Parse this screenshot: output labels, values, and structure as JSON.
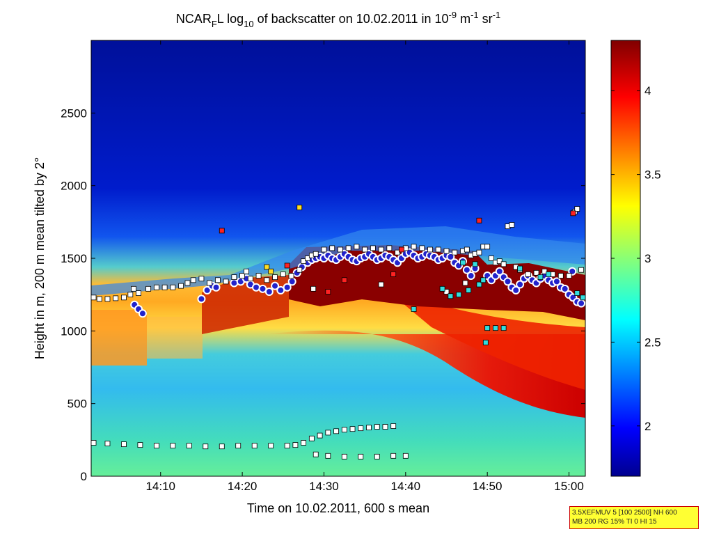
{
  "chart_data": {
    "type": "heatmap",
    "title": {
      "prefix": "NCAR",
      "prefix_sub": "F",
      "mid": "L log",
      "log_sub": "10",
      "main": " of backscatter on 10.02.2011 in 10",
      "exp1": "-9",
      "unit1": " m",
      "exp2": "-1",
      "unit2": " sr",
      "exp3": "-1"
    },
    "xlabel": "Time on 10.02.2011, 600 s mean",
    "ylabel": "Height in m, 200 m mean tilted by 2°",
    "x_range_minutes": [
      0,
      60.5
    ],
    "x_ticks": [
      {
        "label": "14:10",
        "minute": 8.5
      },
      {
        "label": "14:20",
        "minute": 18.5
      },
      {
        "label": "14:30",
        "minute": 28.5
      },
      {
        "label": "14:40",
        "minute": 38.5
      },
      {
        "label": "14:50",
        "minute": 48.5
      },
      {
        "label": "15:00",
        "minute": 58.5
      }
    ],
    "ylim": [
      0,
      3000
    ],
    "y_ticks": [
      0,
      500,
      1000,
      1500,
      2000,
      2500
    ],
    "colorbar": {
      "range": [
        1.7,
        4.3
      ],
      "ticks": [
        "2",
        "2.5",
        "3",
        "3.5",
        "4"
      ],
      "tick_values": [
        2,
        2.5,
        3,
        3.5,
        4
      ],
      "colormap": "jet"
    },
    "series": [
      {
        "marker": "circle",
        "color": "#2222cc",
        "edge": "#ffffff",
        "points": [
          [
            5.3,
            1180
          ],
          [
            5.8,
            1150
          ],
          [
            6.3,
            1120
          ],
          [
            13.5,
            1220
          ],
          [
            14.2,
            1280
          ],
          [
            14.8,
            1310
          ],
          [
            15.3,
            1300
          ],
          [
            17.5,
            1330
          ],
          [
            18.3,
            1340
          ],
          [
            19.0,
            1360
          ],
          [
            19.5,
            1320
          ],
          [
            20.2,
            1300
          ],
          [
            21.0,
            1290
          ],
          [
            21.8,
            1270
          ],
          [
            22.5,
            1310
          ],
          [
            23.2,
            1280
          ],
          [
            24.0,
            1300
          ],
          [
            24.6,
            1340
          ],
          [
            25.2,
            1400
          ],
          [
            25.8,
            1440
          ],
          [
            26.5,
            1470
          ],
          [
            27.0,
            1490
          ],
          [
            27.5,
            1500
          ],
          [
            28.0,
            1510
          ],
          [
            28.5,
            1500
          ],
          [
            29.0,
            1520
          ],
          [
            29.5,
            1500
          ],
          [
            30.0,
            1490
          ],
          [
            30.5,
            1510
          ],
          [
            31.0,
            1530
          ],
          [
            31.5,
            1510
          ],
          [
            32.0,
            1490
          ],
          [
            32.5,
            1480
          ],
          [
            33.0,
            1500
          ],
          [
            33.5,
            1510
          ],
          [
            34.0,
            1530
          ],
          [
            34.5,
            1510
          ],
          [
            35.0,
            1490
          ],
          [
            35.5,
            1500
          ],
          [
            36.0,
            1520
          ],
          [
            36.5,
            1510
          ],
          [
            37.0,
            1490
          ],
          [
            37.5,
            1470
          ],
          [
            38.0,
            1500
          ],
          [
            38.5,
            1530
          ],
          [
            39.0,
            1540
          ],
          [
            39.5,
            1520
          ],
          [
            40.0,
            1500
          ],
          [
            40.5,
            1510
          ],
          [
            41.0,
            1530
          ],
          [
            41.5,
            1520
          ],
          [
            42.0,
            1510
          ],
          [
            42.5,
            1490
          ],
          [
            43.0,
            1500
          ],
          [
            43.5,
            1520
          ],
          [
            44.0,
            1510
          ],
          [
            44.5,
            1470
          ],
          [
            45.0,
            1450
          ],
          [
            45.5,
            1480
          ],
          [
            46.0,
            1420
          ],
          [
            46.5,
            1380
          ],
          [
            47.0,
            1430
          ],
          [
            48.5,
            1380
          ],
          [
            49.0,
            1350
          ],
          [
            49.5,
            1380
          ],
          [
            50.0,
            1410
          ],
          [
            50.5,
            1370
          ],
          [
            51.0,
            1340
          ],
          [
            51.5,
            1300
          ],
          [
            52.0,
            1280
          ],
          [
            52.5,
            1320
          ],
          [
            53.0,
            1360
          ],
          [
            53.5,
            1380
          ],
          [
            54.0,
            1350
          ],
          [
            54.5,
            1330
          ],
          [
            55.0,
            1360
          ],
          [
            55.5,
            1380
          ],
          [
            56.0,
            1350
          ],
          [
            56.5,
            1330
          ],
          [
            57.0,
            1340
          ],
          [
            57.5,
            1300
          ],
          [
            58.0,
            1290
          ],
          [
            58.5,
            1250
          ],
          [
            59.0,
            1230
          ],
          [
            59.5,
            1200
          ],
          [
            60.0,
            1190
          ],
          [
            58.9,
            1410
          ]
        ]
      },
      {
        "marker": "square",
        "color": "#ffffff",
        "edge": "#000000",
        "points": [
          [
            0.3,
            1230
          ],
          [
            1.0,
            1220
          ],
          [
            2.0,
            1220
          ],
          [
            3.0,
            1225
          ],
          [
            4.0,
            1230
          ],
          [
            4.8,
            1250
          ],
          [
            5.2,
            1290
          ],
          [
            5.8,
            1260
          ],
          [
            7.0,
            1290
          ],
          [
            8.0,
            1300
          ],
          [
            9.0,
            1300
          ],
          [
            10.0,
            1300
          ],
          [
            11.0,
            1310
          ],
          [
            11.8,
            1330
          ],
          [
            12.5,
            1350
          ],
          [
            13.5,
            1360
          ],
          [
            14.5,
            1330
          ],
          [
            15.5,
            1350
          ],
          [
            16.5,
            1340
          ],
          [
            17.5,
            1370
          ],
          [
            18.5,
            1380
          ],
          [
            19.5,
            1360
          ],
          [
            20.5,
            1380
          ],
          [
            21.5,
            1350
          ],
          [
            22.5,
            1370
          ],
          [
            23.5,
            1390
          ],
          [
            24.5,
            1380
          ],
          [
            25.5,
            1420
          ],
          [
            26.0,
            1480
          ],
          [
            26.5,
            1500
          ],
          [
            27.0,
            1520
          ],
          [
            27.5,
            1530
          ],
          [
            28.5,
            1560
          ],
          [
            29.5,
            1570
          ],
          [
            30.5,
            1560
          ],
          [
            31.5,
            1570
          ],
          [
            32.5,
            1580
          ],
          [
            33.5,
            1560
          ],
          [
            34.5,
            1570
          ],
          [
            35.5,
            1560
          ],
          [
            36.5,
            1570
          ],
          [
            37.5,
            1540
          ],
          [
            38.5,
            1570
          ],
          [
            39.5,
            1580
          ],
          [
            40.5,
            1570
          ],
          [
            41.5,
            1560
          ],
          [
            42.5,
            1560
          ],
          [
            43.5,
            1550
          ],
          [
            44.5,
            1540
          ],
          [
            45.5,
            1550
          ],
          [
            46.0,
            1560
          ],
          [
            46.5,
            1520
          ],
          [
            47.0,
            1530
          ],
          [
            47.5,
            1540
          ],
          [
            48.0,
            1580
          ],
          [
            48.5,
            1580
          ],
          [
            49.0,
            1500
          ],
          [
            49.5,
            1470
          ],
          [
            50.0,
            1480
          ],
          [
            50.5,
            1460
          ],
          [
            51.0,
            1720
          ],
          [
            51.5,
            1730
          ],
          [
            52.0,
            1440
          ],
          [
            52.5,
            1420
          ],
          [
            53.5,
            1390
          ],
          [
            54.5,
            1400
          ],
          [
            55.5,
            1410
          ],
          [
            56.5,
            1390
          ],
          [
            57.5,
            1380
          ],
          [
            58.5,
            1380
          ],
          [
            59.2,
            1820
          ],
          [
            59.5,
            1840
          ],
          [
            60.0,
            1420
          ],
          [
            19.0,
            1410
          ],
          [
            27.2,
            1290
          ],
          [
            35.5,
            1320
          ],
          [
            45.8,
            1330
          ],
          [
            43.5,
            1270
          ],
          [
            0.3,
            230
          ],
          [
            2.0,
            225
          ],
          [
            4.0,
            220
          ],
          [
            6.0,
            215
          ],
          [
            8.0,
            210
          ],
          [
            10.0,
            210
          ],
          [
            12.0,
            210
          ],
          [
            14.0,
            205
          ],
          [
            16.0,
            205
          ],
          [
            18.0,
            210
          ],
          [
            20.0,
            210
          ],
          [
            22.0,
            210
          ],
          [
            24.0,
            210
          ],
          [
            25.0,
            215
          ],
          [
            26.0,
            230
          ],
          [
            27.0,
            260
          ],
          [
            28.0,
            280
          ],
          [
            29.0,
            300
          ],
          [
            30.0,
            310
          ],
          [
            31.0,
            320
          ],
          [
            32.0,
            325
          ],
          [
            33.0,
            330
          ],
          [
            34.0,
            335
          ],
          [
            35.0,
            340
          ],
          [
            36.0,
            340
          ],
          [
            37.0,
            345
          ],
          [
            27.5,
            150
          ],
          [
            29.0,
            140
          ],
          [
            31.0,
            135
          ],
          [
            33.0,
            135
          ],
          [
            35.0,
            135
          ],
          [
            37.0,
            140
          ],
          [
            38.5,
            140
          ]
        ]
      },
      {
        "marker": "square",
        "color": "#33dddd",
        "edge": "#000000",
        "points": [
          [
            39.5,
            1150
          ],
          [
            43.0,
            1290
          ],
          [
            44.0,
            1240
          ],
          [
            45.0,
            1250
          ],
          [
            46.2,
            1280
          ],
          [
            47.5,
            1320
          ],
          [
            48.0,
            1350
          ],
          [
            48.5,
            1020
          ],
          [
            49.5,
            1020
          ],
          [
            48.3,
            920
          ],
          [
            50.5,
            1020
          ],
          [
            55.0,
            1370
          ],
          [
            56.0,
            1390
          ],
          [
            52.5,
            1430
          ],
          [
            45.5,
            1470
          ],
          [
            47.0,
            1460
          ],
          [
            59.5,
            1260
          ],
          [
            60.2,
            1230
          ]
        ]
      },
      {
        "marker": "square",
        "color": "#ff2222",
        "edge": "#000000",
        "points": [
          [
            16.0,
            1690
          ],
          [
            47.5,
            1760
          ],
          [
            59.0,
            1810
          ],
          [
            29.0,
            1270
          ],
          [
            31.0,
            1350
          ],
          [
            37.0,
            1390
          ],
          [
            24.0,
            1450
          ],
          [
            38.0,
            1560
          ]
        ]
      },
      {
        "marker": "square",
        "color": "#ffdd22",
        "edge": "#000000",
        "points": [
          [
            25.5,
            1850
          ],
          [
            21.5,
            1440
          ],
          [
            22.0,
            1410
          ]
        ]
      }
    ]
  },
  "infobox": {
    "line1": "3.5XEFMUV 5 [100 2500] NH 600",
    "line2": "MB 200 RG 15% TI 0 HI 15"
  }
}
